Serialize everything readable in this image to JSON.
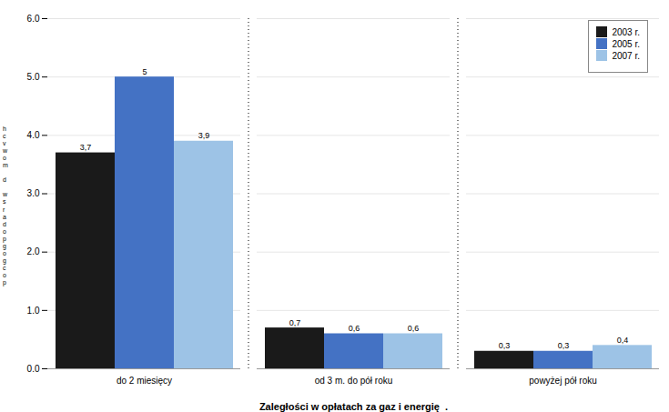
{
  "chart_data": {
    "type": "bar",
    "xlabel": "Zaległości w opłatach za gaz i energię  .",
    "categories": [
      "do 2 miesięcy",
      "od 3 m. do pół roku",
      "powyżej pół roku"
    ],
    "series": [
      {
        "name": "2003 r.",
        "color": "#1a1a1a",
        "values": [
          3.7,
          0.7,
          0.3
        ],
        "value_labels": [
          "3,7",
          "0,7",
          "0,3"
        ]
      },
      {
        "name": "2005 r.",
        "color": "#4472c4",
        "values": [
          5.0,
          0.6,
          0.3
        ],
        "value_labels": [
          "5",
          "0,6",
          "0,3"
        ]
      },
      {
        "name": "2007 r.",
        "color": "#9dc3e6",
        "values": [
          3.9,
          0.6,
          0.4
        ],
        "value_labels": [
          "3,9",
          "0,6",
          "0,4"
        ]
      }
    ],
    "ylim": [
      0,
      6
    ],
    "yticks": [
      0,
      1,
      2,
      3,
      4,
      5,
      6
    ],
    "grid": true,
    "legend": "upper right",
    "data_labels": true,
    "annotations": [
      "h\nc\nv\nw\no\nm\n \nd\n \nw\ns\nr\na\nd\no\np\ng\no\ng\nc\no\np"
    ]
  }
}
